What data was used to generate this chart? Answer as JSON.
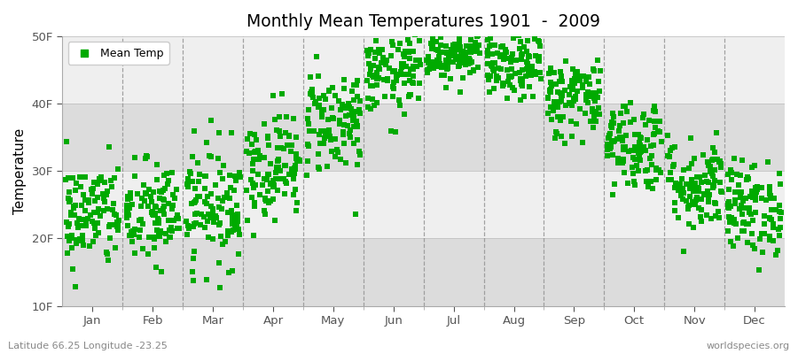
{
  "title": "Monthly Mean Temperatures 1901  -  2009",
  "ylabel": "Temperature",
  "ytick_labels": [
    "10F",
    "20F",
    "30F",
    "40F",
    "50F"
  ],
  "ytick_values": [
    10,
    20,
    30,
    40,
    50
  ],
  "ylim": [
    10,
    50
  ],
  "month_names": [
    "Jan",
    "Feb",
    "Mar",
    "Apr",
    "May",
    "Jun",
    "Jul",
    "Aug",
    "Sep",
    "Oct",
    "Nov",
    "Dec"
  ],
  "n_years": 109,
  "mean_temps_f": [
    23.5,
    23.5,
    25.0,
    31.0,
    37.5,
    44.5,
    47.5,
    45.5,
    41.0,
    34.0,
    28.0,
    24.5
  ],
  "std_temps_f": [
    4.0,
    4.0,
    4.5,
    4.0,
    4.0,
    3.0,
    2.0,
    2.5,
    3.0,
    3.5,
    3.5,
    3.5
  ],
  "marker_color": "#00AA00",
  "marker_size": 18,
  "bg_color_dark": "#DCDCDC",
  "bg_color_light": "#EFEFEF",
  "plot_bg": "#FFFFFF",
  "dashed_line_color": "#999999",
  "footer_left": "Latitude 66.25 Longitude -23.25",
  "footer_right": "worldspecies.org",
  "legend_label": "Mean Temp",
  "seed": 42
}
